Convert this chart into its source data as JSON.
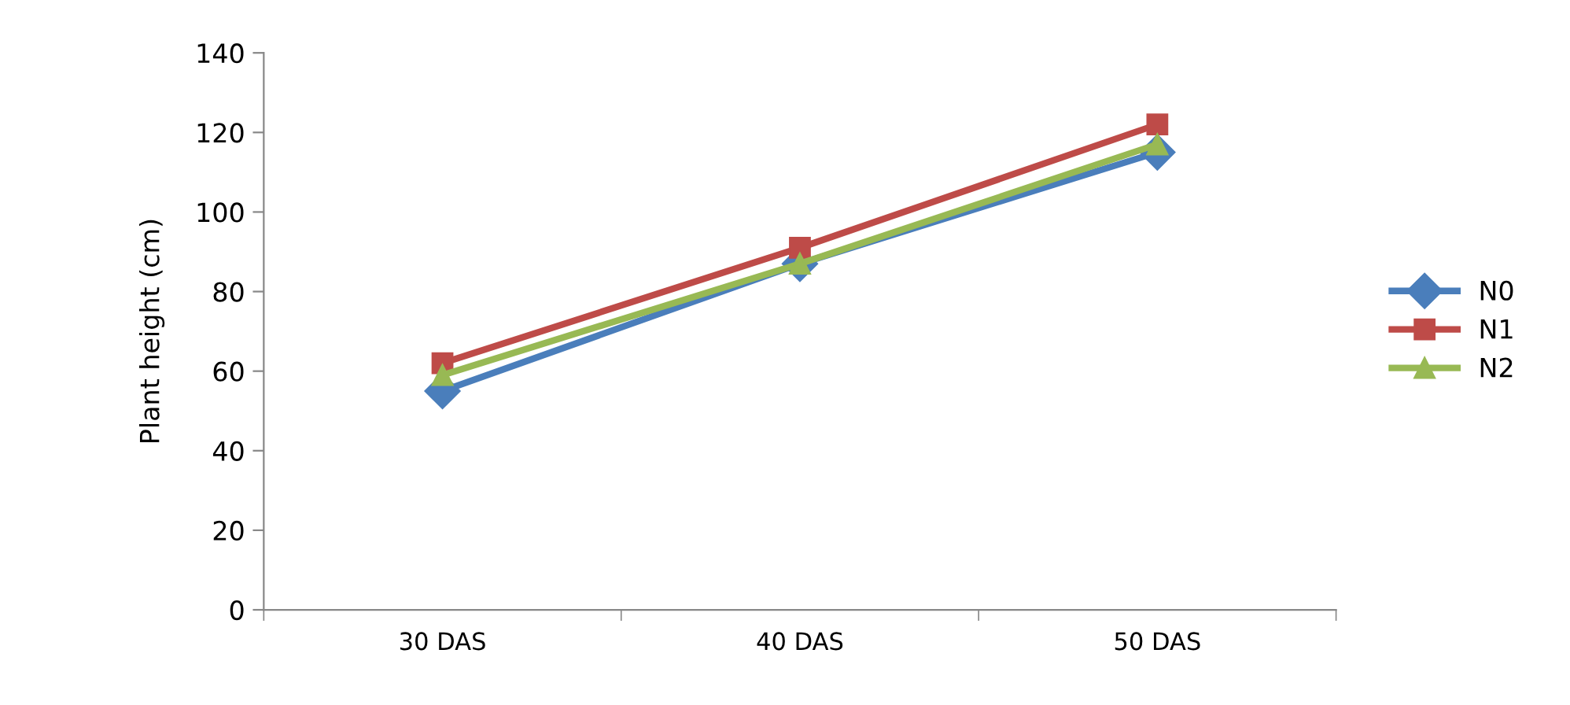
{
  "chart_data": {
    "type": "line",
    "ylabel": "Plant height (cm)",
    "categories": [
      "30 DAS",
      "40 DAS",
      "50 DAS"
    ],
    "series": [
      {
        "name": "N0",
        "color": "#4a7ebb",
        "marker": "diamond",
        "values": [
          55,
          87,
          115
        ]
      },
      {
        "name": "N1",
        "color": "#be4b48",
        "marker": "square",
        "values": [
          62,
          91,
          122
        ]
      },
      {
        "name": "N2",
        "color": "#98b954",
        "marker": "triangle",
        "values": [
          59,
          87,
          117
        ]
      }
    ],
    "ylim": [
      0,
      140
    ],
    "yticks": [
      0,
      20,
      40,
      60,
      80,
      100,
      120,
      140
    ],
    "grid": false,
    "legend": "right",
    "line_style": "solid"
  }
}
